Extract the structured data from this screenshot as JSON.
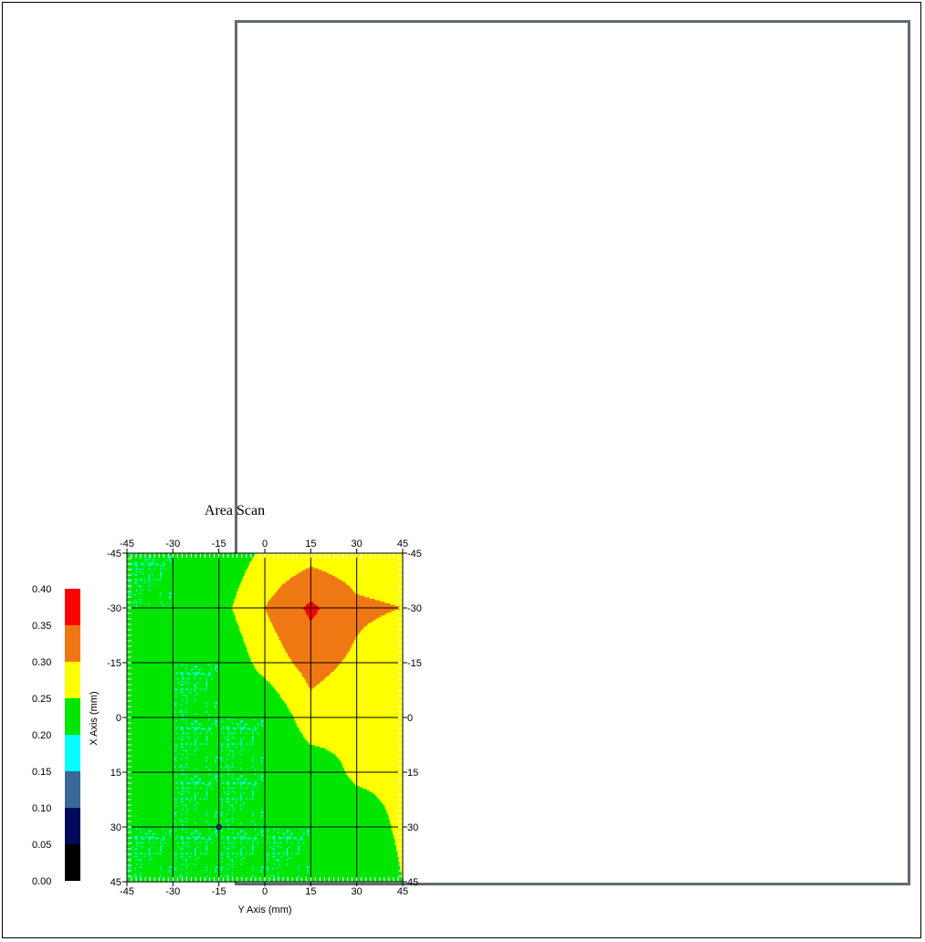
{
  "chart_data": {
    "type": "heatmap",
    "title": "Area Scan",
    "xlabel": "Y Axis (mm)",
    "ylabel": "X Axis (mm)",
    "x_ticks": [
      "-45",
      "-30",
      "-15",
      "0",
      "15",
      "30",
      "45"
    ],
    "y_ticks": [
      "-45",
      "-30",
      "-15",
      "0",
      "15",
      "30",
      "45"
    ],
    "x_values": [
      -45,
      -30,
      -15,
      0,
      15,
      30,
      45
    ],
    "y_values": [
      -45,
      -30,
      -15,
      0,
      15,
      30,
      45
    ],
    "xlim": [
      -45,
      45
    ],
    "ylim": [
      -45,
      45
    ],
    "grid": true,
    "z": [
      [
        0.2,
        0.2,
        0.21,
        0.26,
        0.28,
        0.27,
        0.26
      ],
      [
        0.2,
        0.2,
        0.23,
        0.3,
        0.36,
        0.31,
        0.3
      ],
      [
        0.25,
        0.2,
        0.2,
        0.27,
        0.32,
        0.29,
        0.26
      ],
      [
        0.2,
        0.2,
        0.2,
        0.2,
        0.28,
        0.26,
        0.26
      ],
      [
        0.25,
        0.2,
        0.2,
        0.2,
        0.22,
        0.26,
        0.26
      ],
      [
        0.2,
        0.2,
        0.2,
        0.2,
        0.2,
        0.22,
        0.26
      ],
      [
        0.2,
        0.2,
        0.2,
        0.2,
        0.2,
        0.2,
        0.25
      ]
    ],
    "marker": {
      "x": -15,
      "y": 30
    },
    "colorbar": {
      "labels": [
        "0.40",
        "0.35",
        "0.30",
        "0.25",
        "0.20",
        "0.15",
        "0.10",
        "0.05",
        "0.00"
      ],
      "levels": [
        0.0,
        0.05,
        0.1,
        0.15,
        0.2,
        0.25,
        0.3,
        0.35,
        0.4
      ],
      "colors": [
        "#000000",
        "#000a5a",
        "#3a6a98",
        "#00ffff",
        "#00e600",
        "#ffff00",
        "#f07814",
        "#ff0000"
      ]
    }
  }
}
